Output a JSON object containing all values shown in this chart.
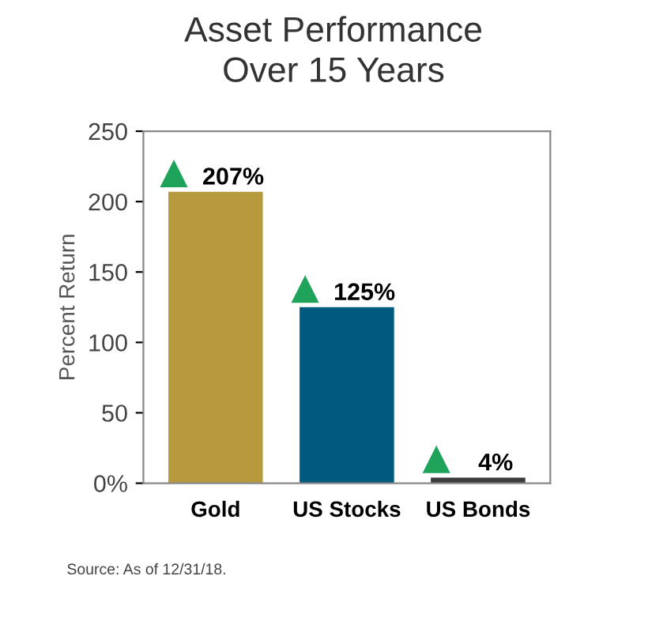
{
  "chart_data": {
    "type": "bar",
    "title": "Asset Performance\nOver 15 Years",
    "ylabel": "Percent Return",
    "categories": [
      "Gold",
      "US Stocks",
      "US Bonds"
    ],
    "values": [
      207,
      125,
      4
    ],
    "colors": [
      "#b89a3e",
      "#005a7f",
      "#3c3c3c"
    ],
    "value_labels": [
      "207%",
      "125%",
      "4%"
    ],
    "ylim": [
      0,
      250
    ],
    "yticks": [
      {
        "value": 0,
        "label": "0%"
      },
      50,
      100,
      150,
      200,
      250
    ],
    "grid": false,
    "annotations": [
      "Source: As of 12/31/18."
    ]
  }
}
